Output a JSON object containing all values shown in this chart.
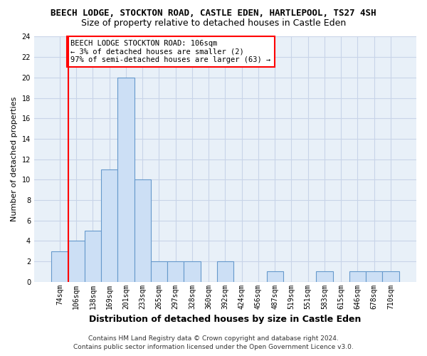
{
  "title_line1": "BEECH LODGE, STOCKTON ROAD, CASTLE EDEN, HARTLEPOOL, TS27 4SH",
  "title_line2": "Size of property relative to detached houses in Castle Eden",
  "xlabel": "Distribution of detached houses by size in Castle Eden",
  "ylabel": "Number of detached properties",
  "bin_labels": [
    "74sqm",
    "106sqm",
    "138sqm",
    "169sqm",
    "201sqm",
    "233sqm",
    "265sqm",
    "297sqm",
    "328sqm",
    "360sqm",
    "392sqm",
    "424sqm",
    "456sqm",
    "487sqm",
    "519sqm",
    "551sqm",
    "583sqm",
    "615sqm",
    "646sqm",
    "678sqm",
    "710sqm"
  ],
  "bar_values": [
    3,
    4,
    5,
    11,
    20,
    10,
    2,
    2,
    2,
    0,
    2,
    0,
    0,
    1,
    0,
    0,
    1,
    0,
    1,
    1,
    1
  ],
  "bar_color": "#ccdff5",
  "bar_edgecolor": "#6699cc",
  "bar_linewidth": 0.8,
  "vline_color": "red",
  "vline_linewidth": 1.5,
  "vline_index": 1,
  "ylim": [
    0,
    24
  ],
  "yticks": [
    0,
    2,
    4,
    6,
    8,
    10,
    12,
    14,
    16,
    18,
    20,
    22,
    24
  ],
  "annotation_text": "BEECH LODGE STOCKTON ROAD: 106sqm\n← 3% of detached houses are smaller (2)\n97% of semi-detached houses are larger (63) →",
  "annotation_box_edgecolor": "red",
  "annotation_box_facecolor": "white",
  "footer_line1": "Contains HM Land Registry data © Crown copyright and database right 2024.",
  "footer_line2": "Contains public sector information licensed under the Open Government Licence v3.0.",
  "fig_bg_color": "#ffffff",
  "plot_bg_color": "#e8f0f8",
  "grid_color": "#c8d4e8",
  "title1_fontsize": 9,
  "title2_fontsize": 9,
  "ylabel_fontsize": 8,
  "xlabel_fontsize": 9,
  "tick_fontsize": 7,
  "annot_fontsize": 7.5
}
